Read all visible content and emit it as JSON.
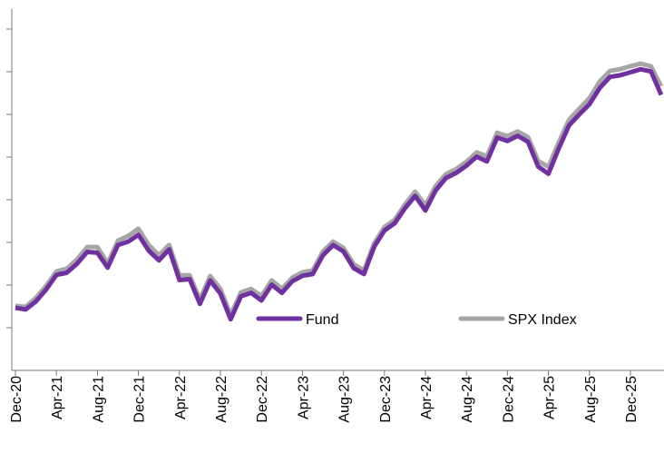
{
  "chart_data": {
    "type": "line",
    "categories": [
      "Dec-20",
      null,
      null,
      null,
      "Apr-21",
      null,
      null,
      null,
      "Aug-21",
      null,
      null,
      null,
      "Dec-21",
      null,
      null,
      null,
      "Apr-22",
      null,
      null,
      null,
      "Aug-22",
      null,
      null,
      null,
      "Dec-22",
      null,
      null,
      null,
      "Apr-23",
      null,
      null,
      null,
      "Aug-23",
      null,
      null,
      null,
      "Dec-23",
      null,
      null,
      null,
      "Apr-24",
      null,
      null,
      null,
      "Aug-24",
      null,
      null,
      null,
      "Dec-24",
      null,
      null,
      null,
      "Apr-25",
      null,
      null,
      null,
      "Aug-25",
      null,
      null,
      null,
      "Dec-25",
      null,
      null,
      null
    ],
    "series": [
      {
        "name": "Fund",
        "color": "#7030a0",
        "values": [
          1.51,
          1.47,
          1.66,
          1.94,
          2.28,
          2.33,
          2.54,
          2.82,
          2.8,
          2.45,
          2.98,
          3.06,
          3.22,
          2.85,
          2.62,
          2.88,
          2.16,
          2.18,
          1.6,
          2.15,
          1.84,
          1.24,
          1.78,
          1.86,
          1.68,
          2.05,
          1.86,
          2.13,
          2.26,
          2.3,
          2.74,
          2.98,
          2.83,
          2.44,
          2.3,
          2.94,
          3.32,
          3.49,
          3.84,
          4.13,
          3.79,
          4.26,
          4.55,
          4.67,
          4.84,
          5.05,
          4.94,
          5.5,
          5.42,
          5.54,
          5.4,
          4.82,
          4.65,
          5.24,
          5.78,
          6.04,
          6.28,
          6.66,
          6.92,
          6.96,
          7.03,
          7.1,
          7.05,
          6.5
        ]
      },
      {
        "name": "SPX Index",
        "color": "#a6a6a6",
        "values": [
          1.51,
          1.49,
          1.7,
          1.98,
          2.32,
          2.38,
          2.6,
          2.89,
          2.89,
          2.51,
          3.04,
          3.15,
          3.32,
          2.94,
          2.7,
          2.94,
          2.23,
          2.23,
          1.66,
          2.21,
          1.91,
          1.3,
          1.83,
          1.91,
          1.74,
          2.11,
          1.91,
          2.17,
          2.3,
          2.34,
          2.79,
          3.02,
          2.87,
          2.49,
          2.34,
          2.98,
          3.36,
          3.53,
          3.89,
          4.19,
          3.87,
          4.32,
          4.6,
          4.72,
          4.89,
          5.11,
          5.02,
          5.57,
          5.49,
          5.6,
          5.47,
          4.91,
          4.77,
          5.34,
          5.87,
          6.13,
          6.38,
          6.77,
          7.02,
          7.06,
          7.13,
          7.19,
          7.13,
          6.66
        ]
      }
    ],
    "ylim": [
      0,
      8
    ],
    "yticks": [
      1,
      2,
      3,
      4,
      5,
      6,
      7,
      8
    ],
    "grid": false
  }
}
